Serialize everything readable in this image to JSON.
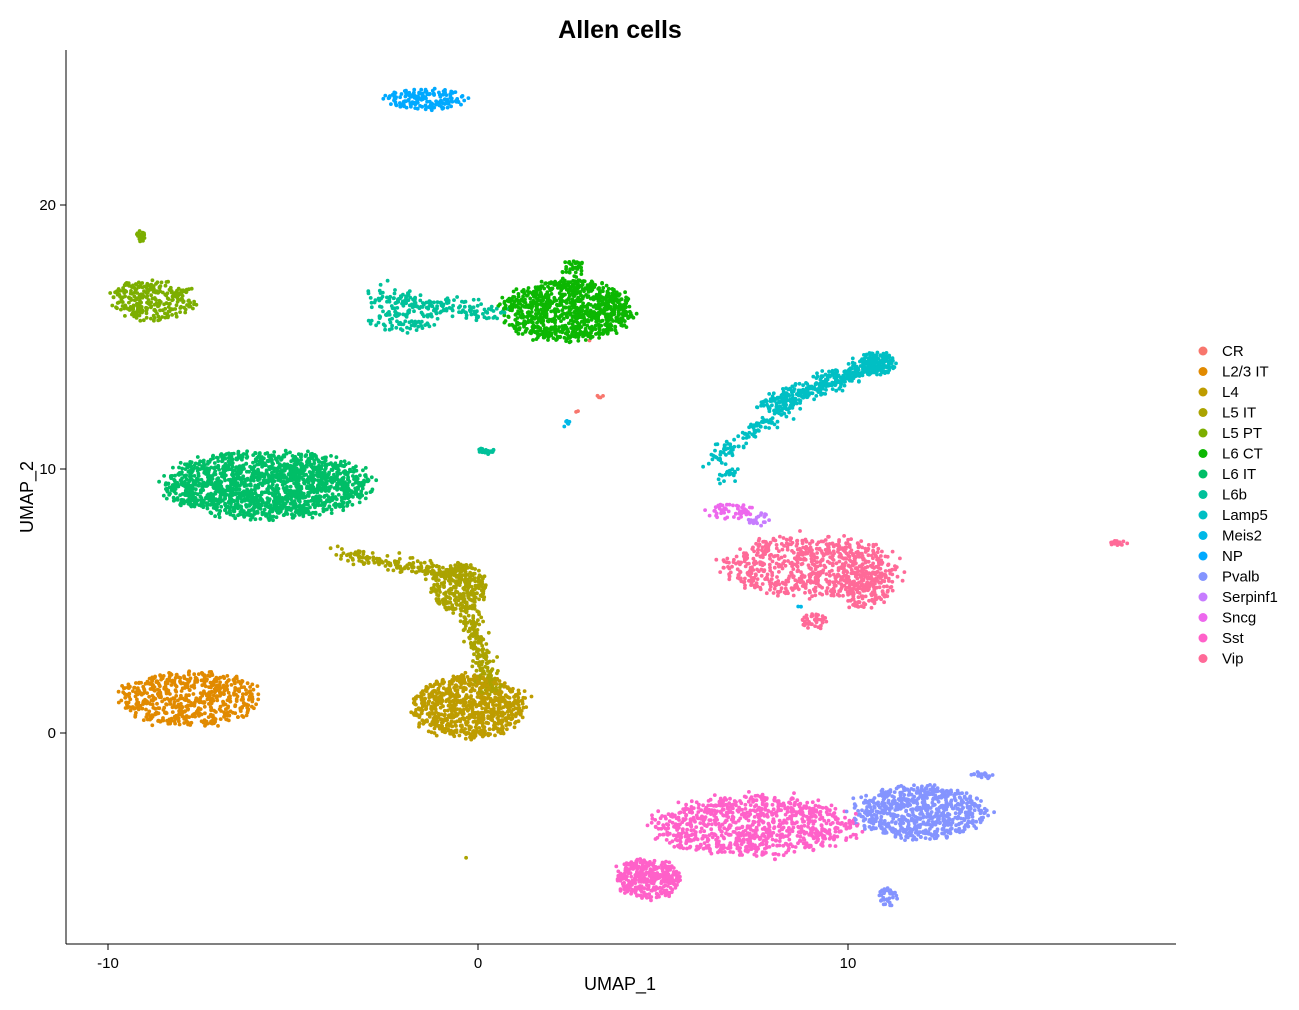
{
  "chart_data": {
    "type": "scatter",
    "title": "Allen cells",
    "xlabel": "UMAP_1",
    "ylabel": "UMAP_2",
    "xlim": [
      -11,
      19
    ],
    "ylim": [
      -8,
      26
    ],
    "x_ticks": [
      -10,
      0,
      10
    ],
    "x_tick_labels": [
      "-10",
      "0",
      "10"
    ],
    "y_ticks": [
      0,
      10,
      20
    ],
    "y_tick_labels": [
      "0",
      "10",
      "20"
    ],
    "grid": false,
    "legend_position": "right",
    "series": [
      {
        "name": "CR",
        "color": "#F8766D"
      },
      {
        "name": "L2/3 IT",
        "color": "#E18A00"
      },
      {
        "name": "L4",
        "color": "#BE9C00"
      },
      {
        "name": "L5 IT",
        "color": "#ABA300"
      },
      {
        "name": "L5 PT",
        "color": "#7CAE00"
      },
      {
        "name": "L6 CT",
        "color": "#0CB702"
      },
      {
        "name": "L6 IT",
        "color": "#00BE67"
      },
      {
        "name": "L6b",
        "color": "#00C19A"
      },
      {
        "name": "Lamp5",
        "color": "#00BFC4"
      },
      {
        "name": "Meis2",
        "color": "#00B8E7"
      },
      {
        "name": "NP",
        "color": "#00A9FF"
      },
      {
        "name": "Pvalb",
        "color": "#8494FF"
      },
      {
        "name": "Serpinf1",
        "color": "#C77CFF"
      },
      {
        "name": "Sncg",
        "color": "#ED68ED"
      },
      {
        "name": "Sst",
        "color": "#FF61C9"
      },
      {
        "name": "Vip",
        "color": "#FF6A98"
      }
    ],
    "clusters": [
      {
        "label": "NP",
        "shape": "ellipse",
        "center": [
          -1.4,
          24.0
        ],
        "spread": [
          0.9,
          0.3
        ],
        "count": 170
      },
      {
        "label": "L5 PT",
        "shape": "ellipse",
        "center": [
          -9.1,
          18.8
        ],
        "spread": [
          0.1,
          0.2
        ],
        "count": 20
      },
      {
        "label": "L5 PT",
        "shape": "ellipse",
        "center": [
          -8.8,
          16.4
        ],
        "spread": [
          0.9,
          0.6
        ],
        "count": 280
      },
      {
        "label": "L6b",
        "shape": "segment",
        "from": [
          -2.8,
          16.5
        ],
        "to": [
          0.6,
          15.9
        ],
        "width": 0.35,
        "count": 180
      },
      {
        "label": "L6b",
        "shape": "ellipse",
        "center": [
          -2.0,
          15.6
        ],
        "spread": [
          0.7,
          0.35
        ],
        "count": 80
      },
      {
        "label": "L6 CT",
        "shape": "ellipse",
        "center": [
          2.4,
          16.0
        ],
        "spread": [
          1.4,
          0.9
        ],
        "count": 950
      },
      {
        "label": "L6 CT",
        "shape": "ellipse",
        "center": [
          2.6,
          17.5
        ],
        "spread": [
          0.25,
          0.35
        ],
        "count": 40
      },
      {
        "label": "CR",
        "shape": "ellipse",
        "center": [
          3.4,
          12.8
        ],
        "spread": [
          0.2,
          0.1
        ],
        "count": 4
      },
      {
        "label": "CR",
        "shape": "ellipse",
        "center": [
          2.7,
          12.2
        ],
        "spread": [
          0.1,
          0.05
        ],
        "count": 2
      },
      {
        "label": "CR",
        "shape": "ellipse",
        "center": [
          3.0,
          14.9
        ],
        "spread": [
          0.05,
          0.05
        ],
        "count": 1
      },
      {
        "label": "Meis2",
        "shape": "ellipse",
        "center": [
          2.45,
          11.7
        ],
        "spread": [
          0.12,
          0.12
        ],
        "count": 8
      },
      {
        "label": "L6b",
        "shape": "ellipse",
        "center": [
          0.2,
          10.7
        ],
        "spread": [
          0.2,
          0.12
        ],
        "count": 25
      },
      {
        "label": "L6 IT",
        "shape": "ellipse",
        "center": [
          -5.7,
          9.4
        ],
        "spread": [
          2.2,
          1.0
        ],
        "count": 1700
      },
      {
        "label": "L5 IT",
        "shape": "segment",
        "from": [
          -3.8,
          6.8
        ],
        "to": [
          -0.6,
          6.0
        ],
        "width": 0.3,
        "count": 170
      },
      {
        "label": "L5 IT",
        "shape": "ellipse",
        "center": [
          -0.5,
          5.5
        ],
        "spread": [
          0.6,
          0.7
        ],
        "count": 300
      },
      {
        "label": "L5 IT",
        "shape": "segment",
        "from": [
          -0.3,
          4.6
        ],
        "to": [
          0.4,
          1.5
        ],
        "width": 0.3,
        "count": 200
      },
      {
        "label": "L4",
        "shape": "ellipse",
        "center": [
          -0.25,
          1.0
        ],
        "spread": [
          1.2,
          0.95
        ],
        "count": 800
      },
      {
        "label": "L2/3 IT",
        "shape": "ellipse",
        "center": [
          -7.8,
          1.3
        ],
        "spread": [
          1.5,
          0.8
        ],
        "count": 600
      },
      {
        "label": "L5 IT",
        "shape": "ellipse",
        "center": [
          -0.35,
          -4.7
        ],
        "spread": [
          0.03,
          0.03
        ],
        "count": 1
      },
      {
        "label": "Lamp5",
        "shape": "segment",
        "from": [
          6.3,
          10.3
        ],
        "to": [
          8.6,
          12.6
        ],
        "width": 0.3,
        "count": 130
      },
      {
        "label": "Lamp5",
        "shape": "segment",
        "from": [
          7.8,
          12.4
        ],
        "to": [
          10.8,
          14.0
        ],
        "width": 0.35,
        "count": 380
      },
      {
        "label": "Lamp5",
        "shape": "ellipse",
        "center": [
          10.8,
          14.0
        ],
        "spread": [
          0.4,
          0.35
        ],
        "count": 120
      },
      {
        "label": "Lamp5",
        "shape": "segment",
        "from": [
          6.5,
          9.4
        ],
        "to": [
          7.0,
          10.1
        ],
        "width": 0.2,
        "count": 20
      },
      {
        "label": "Sncg",
        "shape": "ellipse",
        "center": [
          6.8,
          8.4
        ],
        "spread": [
          0.5,
          0.25
        ],
        "count": 55
      },
      {
        "label": "Serpinf1",
        "shape": "ellipse",
        "center": [
          7.6,
          8.1
        ],
        "spread": [
          0.3,
          0.2
        ],
        "count": 22
      },
      {
        "label": "Vip",
        "shape": "ellipse",
        "center": [
          9.0,
          6.3
        ],
        "spread": [
          1.9,
          0.9
        ],
        "count": 700
      },
      {
        "label": "Vip",
        "shape": "ellipse",
        "center": [
          10.4,
          5.5
        ],
        "spread": [
          0.7,
          0.6
        ],
        "count": 160
      },
      {
        "label": "Vip",
        "shape": "ellipse",
        "center": [
          9.1,
          4.2
        ],
        "spread": [
          0.3,
          0.25
        ],
        "count": 40
      },
      {
        "label": "Vip",
        "shape": "ellipse",
        "center": [
          17.3,
          7.2
        ],
        "spread": [
          0.2,
          0.08
        ],
        "count": 15
      },
      {
        "label": "Meis2",
        "shape": "ellipse",
        "center": [
          8.7,
          4.8
        ],
        "spread": [
          0.05,
          0.05
        ],
        "count": 2
      },
      {
        "label": "Sst",
        "shape": "ellipse",
        "center": [
          7.4,
          -3.5
        ],
        "spread": [
          2.2,
          0.9
        ],
        "count": 900
      },
      {
        "label": "Sst",
        "shape": "ellipse",
        "center": [
          4.6,
          -5.5
        ],
        "spread": [
          0.7,
          0.6
        ],
        "count": 350
      },
      {
        "label": "Pvalb",
        "shape": "ellipse",
        "center": [
          11.9,
          -3.0
        ],
        "spread": [
          1.4,
          0.8
        ],
        "count": 700
      },
      {
        "label": "Pvalb",
        "shape": "ellipse",
        "center": [
          11.1,
          -6.2
        ],
        "spread": [
          0.2,
          0.3
        ],
        "count": 35
      },
      {
        "label": "Pvalb",
        "shape": "ellipse",
        "center": [
          13.7,
          -1.6
        ],
        "spread": [
          0.3,
          0.1
        ],
        "count": 20
      }
    ]
  }
}
